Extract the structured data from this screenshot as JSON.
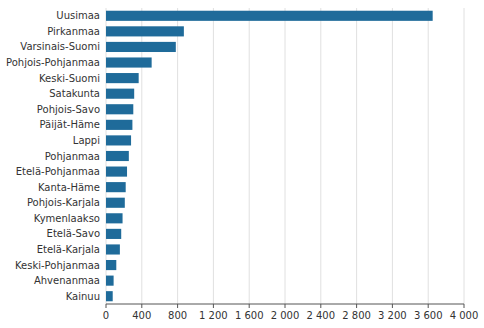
{
  "chart_data": {
    "type": "bar",
    "orientation": "horizontal",
    "categories": [
      "Kainuu",
      "Ahvenanmaa",
      "Keski-Pohjanmaa",
      "Etelä-Karjala",
      "Etelä-Savo",
      "Kymenlaakso",
      "Pohjois-Karjala",
      "Kanta-Häme",
      "Etelä-Pohjanmaa",
      "Pohjanmaa",
      "Lappi",
      "Päijät-Häme",
      "Pohjois-Savo",
      "Satakunta",
      "Keski-Suomi",
      "Pohjois-Pohjanmaa",
      "Varsinais-Suomi",
      "Pirkanmaa",
      "Uusimaa"
    ],
    "values": [
      75,
      85,
      115,
      155,
      170,
      185,
      210,
      220,
      235,
      255,
      280,
      295,
      305,
      315,
      365,
      510,
      780,
      870,
      3650
    ],
    "color": "#1F6B9A",
    "xlim": [
      0,
      4000
    ],
    "xticks": [
      0,
      400,
      800,
      {
        "value": 1200,
        "label": "1 200"
      },
      {
        "value": 1600,
        "label": "1 600"
      },
      {
        "value": 2000,
        "label": "2 000"
      },
      {
        "value": 2400,
        "label": "2 400"
      },
      {
        "value": 2800,
        "label": "2 800"
      },
      {
        "value": 3200,
        "label": "3 200"
      },
      {
        "value": 3600,
        "label": "3 600"
      },
      {
        "value": 4000,
        "label": "4 000"
      }
    ],
    "grid": true
  }
}
